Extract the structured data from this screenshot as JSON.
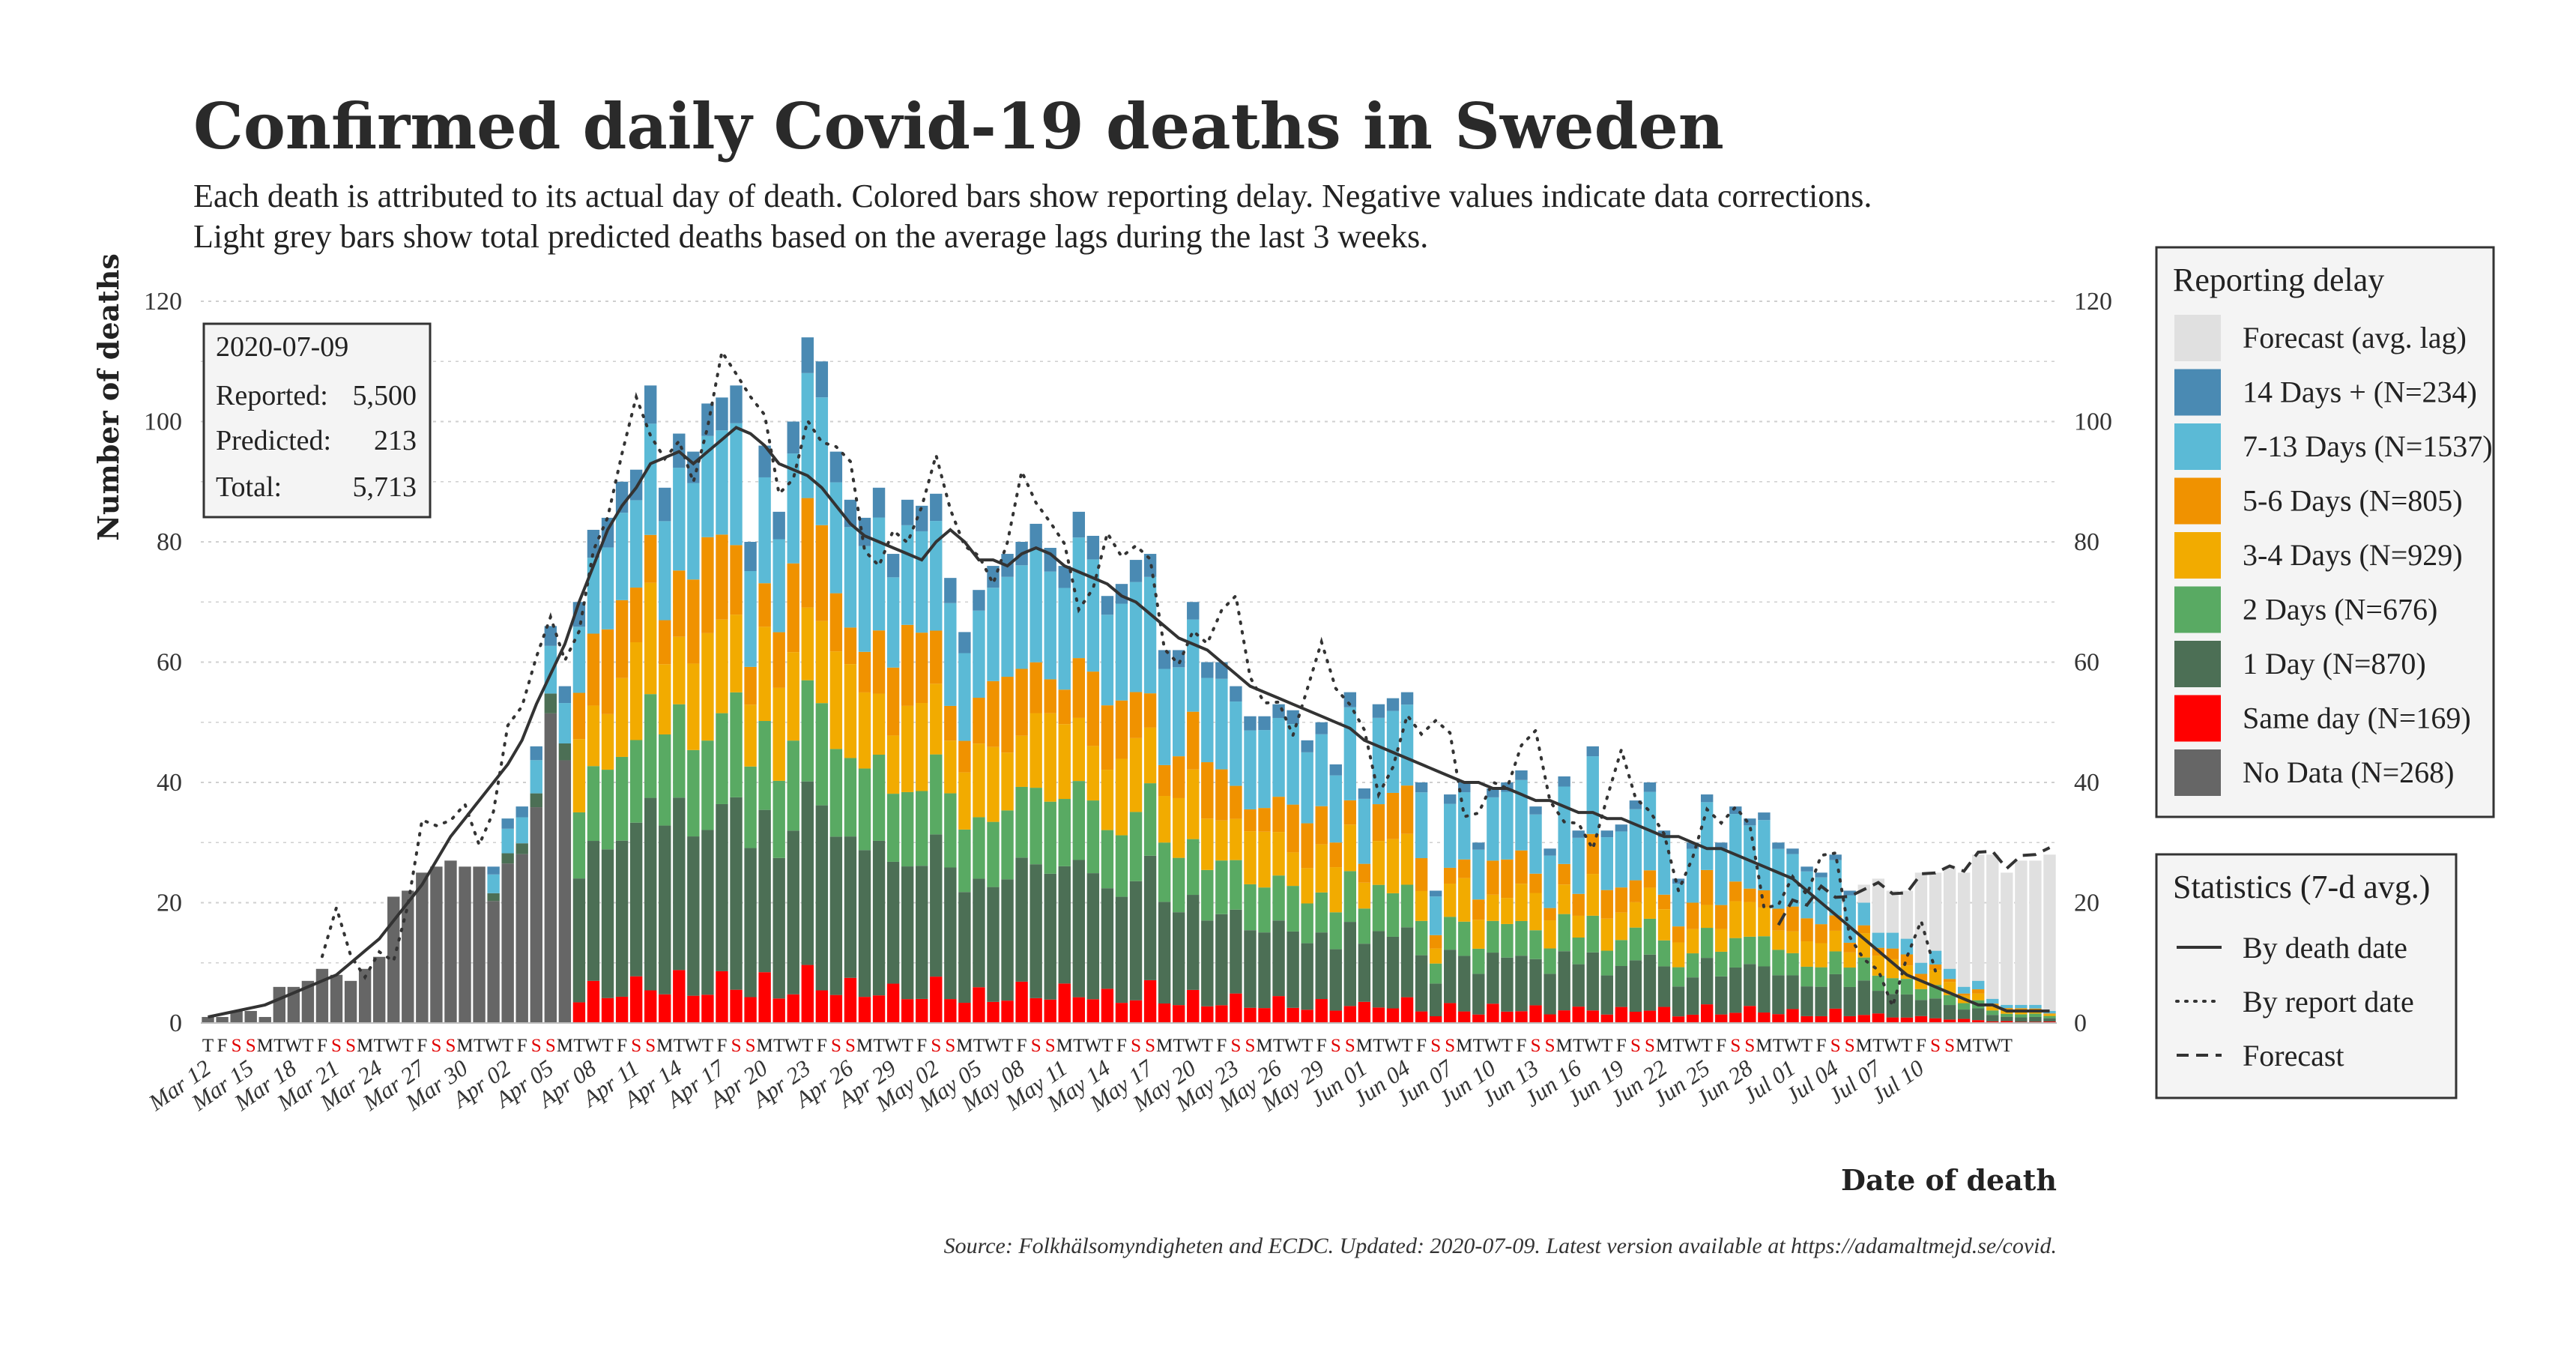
{
  "title": "Confirmed daily Covid-19 deaths in Sweden",
  "subtitle_lines": [
    "Each death is attributed to its actual day of death. Colored bars show reporting delay. Negative values indicate data corrections.",
    "Light grey bars show total predicted deaths based on the average lags during the last 3 weeks."
  ],
  "source": "Source: Folkhälsomyndigheten and ECDC. Updated: 2020-07-09. Latest version available at https://adamaltmejd.se/covid.",
  "info_box": {
    "date": "2020-07-09",
    "rows": [
      {
        "label": "Reported:",
        "value": "5,500"
      },
      {
        "label": "Predicted:",
        "value": "213"
      },
      {
        "label": "Total:",
        "value": "5,713"
      }
    ]
  },
  "legend_delay": {
    "title": "Reporting delay",
    "items": [
      {
        "key": "forecast",
        "label": "Forecast (avg. lag)",
        "color": "#e0e0e0"
      },
      {
        "key": "d14",
        "label": "14 Days + (N=234)",
        "color": "#4a8ab3"
      },
      {
        "key": "d713",
        "label": "7-13 Days (N=1537)",
        "color": "#5bbad6"
      },
      {
        "key": "d56",
        "label": "5-6 Days (N=805)",
        "color": "#f09200"
      },
      {
        "key": "d34",
        "label": "3-4 Days (N=929)",
        "color": "#f2ab00"
      },
      {
        "key": "d2",
        "label": "2 Days (N=676)",
        "color": "#59aa63"
      },
      {
        "key": "d1",
        "label": "1 Day (N=870)",
        "color": "#4c6f55"
      },
      {
        "key": "d0",
        "label": "Same day (N=169)",
        "color": "#ff0000"
      },
      {
        "key": "nodata",
        "label": "No Data (N=268)",
        "color": "#666666"
      }
    ]
  },
  "legend_stats": {
    "title": "Statistics (7-d avg.)",
    "items": [
      {
        "key": "death",
        "label": "By death date",
        "style": "solid"
      },
      {
        "key": "report",
        "label": "By report date",
        "style": "dotted"
      },
      {
        "key": "forecast",
        "label": "Forecast",
        "style": "dashed"
      }
    ]
  },
  "chart_data": {
    "type": "bar",
    "stacked": true,
    "title": "Confirmed daily Covid-19 deaths in Sweden",
    "xlabel": "Date of death",
    "ylabel": "Number of deaths",
    "ylim": [
      0,
      120
    ],
    "yticks": [
      0,
      20,
      40,
      60,
      80,
      100,
      120
    ],
    "start_date": "2020-03-12",
    "end_date": "2020-07-09",
    "x_tick_labels": [
      "Mar 12",
      "Mar 15",
      "Mar 18",
      "Mar 21",
      "Mar 24",
      "Mar 27",
      "Mar 30",
      "Apr 02",
      "Apr 05",
      "Apr 08",
      "Apr 11",
      "Apr 14",
      "Apr 17",
      "Apr 20",
      "Apr 23",
      "Apr 26",
      "Apr 29",
      "May 02",
      "May 05",
      "May 08",
      "May 11",
      "May 14",
      "May 17",
      "May 20",
      "May 23",
      "May 26",
      "May 29",
      "Jun 01",
      "Jun 04",
      "Jun 07",
      "Jun 10",
      "Jun 13",
      "Jun 16",
      "Jun 19",
      "Jun 22",
      "Jun 25",
      "Jun 28",
      "Jul 01",
      "Jul 04",
      "Jul 07",
      "Jul 10"
    ],
    "weekday_letters": "TFSSMTWTFSSMTWTFSSMTWTFSSMTWTFSSMTWTFSSMTWTFSSMTWTFSSMTWTFSSMTWTFSSMTWTFSSMTWTFSSMTWTFSSMTWTFSSMTWTFSSMTWTFSSMTWTFSSMTWTFSSMTWT",
    "red_days": [
      "S",
      "Apr10",
      "Apr13",
      "May01",
      "May21",
      "Jun19"
    ],
    "series_order": [
      "nodata",
      "d0",
      "d1",
      "d2",
      "d34",
      "d56",
      "d713",
      "d14",
      "forecast"
    ],
    "totals": [
      1,
      1,
      2,
      2,
      1,
      6,
      6,
      7,
      9,
      8,
      7,
      9,
      11,
      21,
      22,
      25,
      26,
      27,
      26,
      26,
      26,
      34,
      36,
      46,
      66,
      56,
      70,
      82,
      84,
      90,
      92,
      106,
      89,
      98,
      95,
      103,
      104,
      106,
      80,
      96,
      85,
      100,
      114,
      110,
      95,
      87,
      84,
      89,
      78,
      87,
      86,
      88,
      74,
      65,
      72,
      76,
      78,
      80,
      83,
      79,
      76,
      85,
      81,
      71,
      73,
      77,
      78,
      62,
      62,
      70,
      60,
      60,
      56,
      51,
      51,
      53,
      52,
      47,
      50,
      43,
      55,
      39,
      53,
      54,
      55,
      40,
      22,
      38,
      40,
      30,
      39,
      40,
      42,
      36,
      29,
      41,
      32,
      46,
      32,
      33,
      37,
      40,
      32,
      24,
      30,
      38,
      30,
      36,
      34,
      35,
      30,
      29,
      26,
      25,
      28,
      22,
      20,
      15,
      15,
      14,
      10,
      12,
      9,
      6,
      7,
      4,
      3,
      3,
      3,
      2
    ],
    "forecast_totals": [
      null,
      null,
      null,
      null,
      null,
      null,
      null,
      null,
      null,
      null,
      null,
      null,
      null,
      null,
      null,
      null,
      null,
      null,
      null,
      null,
      null,
      null,
      null,
      null,
      null,
      null,
      null,
      null,
      null,
      null,
      null,
      null,
      null,
      null,
      null,
      null,
      null,
      null,
      null,
      null,
      null,
      null,
      null,
      null,
      null,
      null,
      null,
      null,
      null,
      null,
      null,
      null,
      null,
      null,
      null,
      null,
      null,
      null,
      null,
      null,
      null,
      null,
      null,
      null,
      null,
      null,
      null,
      null,
      null,
      null,
      null,
      null,
      null,
      null,
      null,
      null,
      null,
      null,
      null,
      null,
      null,
      null,
      null,
      null,
      null,
      null,
      null,
      null,
      null,
      null,
      null,
      null,
      null,
      null,
      null,
      null,
      null,
      null,
      null,
      null,
      null,
      null,
      null,
      null,
      null,
      null,
      null,
      null,
      null,
      null,
      18,
      22,
      21,
      24,
      22,
      22,
      23,
      24,
      22,
      22,
      25,
      25,
      26,
      25,
      28,
      28,
      25,
      27,
      27,
      28
    ],
    "line_death_date": [
      1,
      1.5,
      2,
      2.5,
      3,
      4,
      5,
      6,
      7,
      8,
      10,
      12,
      14,
      17,
      20,
      23,
      27,
      31,
      34,
      37,
      40,
      43,
      47,
      53,
      58,
      63,
      70,
      76,
      82,
      86,
      89,
      93,
      94,
      95,
      93,
      95,
      97,
      99,
      98,
      96,
      93,
      92,
      91,
      89,
      86,
      83,
      81,
      80,
      79,
      78,
      77,
      80,
      82,
      80,
      77,
      77,
      76,
      78,
      79,
      78,
      76,
      75,
      74,
      73,
      71,
      70,
      68,
      66,
      64,
      63,
      62,
      60,
      58,
      56,
      55,
      54,
      53,
      52,
      51,
      50,
      49,
      47,
      46,
      45,
      44,
      43,
      42,
      41,
      40,
      40,
      39,
      39,
      38,
      37,
      37,
      36,
      35,
      35,
      34,
      34,
      33,
      32,
      31,
      31,
      30,
      29,
      29,
      28,
      27,
      26,
      25,
      24,
      22,
      20,
      18,
      16,
      14,
      12,
      10,
      8,
      7,
      6,
      5,
      4,
      3,
      3,
      2,
      2,
      2,
      2
    ]
  }
}
